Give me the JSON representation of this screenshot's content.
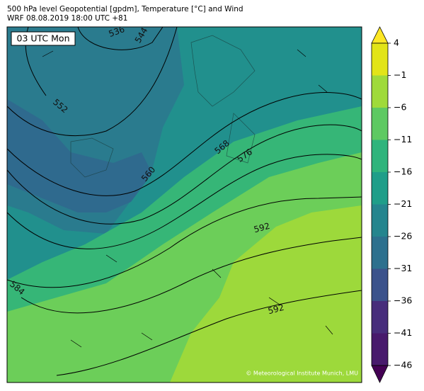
{
  "header": {
    "title": "500 hPa level Geopotential [gpdm], Temperature [°C] and Wind",
    "subtitle": "WRF 08.08.2019 18:00 UTC +81",
    "time_label": "03 UTC Mon"
  },
  "contours": {
    "labels": [
      "536",
      "544",
      "552",
      "560",
      "568",
      "576",
      "592",
      "592",
      "584"
    ]
  },
  "colorbar": {
    "labels": [
      "4",
      "−1",
      "−6",
      "−11",
      "−16",
      "−21",
      "−26",
      "−31",
      "−36",
      "−41",
      "−46"
    ]
  },
  "footer": {
    "copyright": "© Meteorological Institute Munich, LMU"
  }
}
